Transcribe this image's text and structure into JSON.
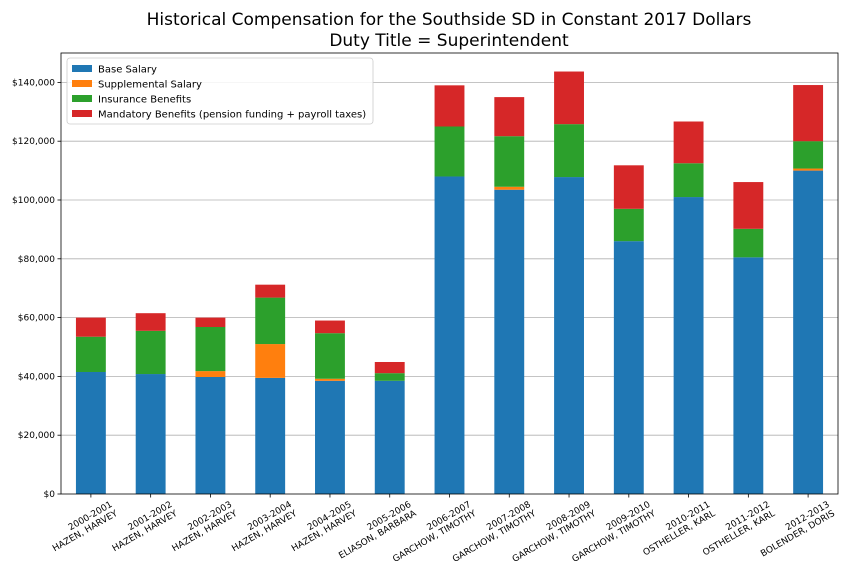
{
  "chart_data": {
    "type": "bar",
    "stacked": true,
    "title": "Historical Compensation for the Southside SD in Constant 2017 Dollars",
    "subtitle": "Duty Title = Superintendent",
    "xlabel": "",
    "ylabel": "",
    "ylim": [
      0,
      150000
    ],
    "y_ticks": [
      0,
      20000,
      40000,
      60000,
      80000,
      100000,
      120000,
      140000
    ],
    "y_tick_labels": [
      "$0",
      "$20,000",
      "$40,000",
      "$60,000",
      "$80,000",
      "$100,000",
      "$120,000",
      "$140,000"
    ],
    "grid": "horizontal",
    "legend_position": "top-left",
    "categories": [
      [
        "2000-2001",
        "HAZEN, HARVEY"
      ],
      [
        "2001-2002",
        "HAZEN, HARVEY"
      ],
      [
        "2002-2003",
        "HAZEN, HARVEY"
      ],
      [
        "2003-2004",
        "HAZEN, HARVEY"
      ],
      [
        "2004-2005",
        "HAZEN, HARVEY"
      ],
      [
        "2005-2006",
        "ELIASON, BARBARA"
      ],
      [
        "2006-2007",
        "GARCHOW, TIMOTHY"
      ],
      [
        "2007-2008",
        "GARCHOW, TIMOTHY"
      ],
      [
        "2008-2009",
        "GARCHOW, TIMOTHY"
      ],
      [
        "2009-2010",
        "GARCHOW, TIMOTHY"
      ],
      [
        "2010-2011",
        "OSTHELLER, KARL"
      ],
      [
        "2011-2012",
        "OSTHELLER, KARL"
      ],
      [
        "2012-2013",
        "BOLENDER, DORIS"
      ]
    ],
    "series": [
      {
        "name": "Base Salary",
        "color": "#1f77b4",
        "values": [
          41500,
          40800,
          39800,
          39500,
          38500,
          38500,
          108000,
          103500,
          107800,
          86000,
          101000,
          80500,
          110000
        ]
      },
      {
        "name": "Supplemental Salary",
        "color": "#ff7f0e",
        "values": [
          0,
          0,
          2000,
          11500,
          700,
          0,
          0,
          1000,
          0,
          0,
          0,
          0,
          700
        ]
      },
      {
        "name": "Insurance Benefits",
        "color": "#2ca02c",
        "values": [
          12000,
          14700,
          15000,
          15800,
          15500,
          2600,
          17000,
          17200,
          18000,
          11000,
          11500,
          9700,
          9300
        ]
      },
      {
        "name": "Mandatory Benefits (pension funding + payroll taxes)",
        "color": "#d62728",
        "values": [
          6500,
          6000,
          3200,
          4400,
          4300,
          3800,
          14000,
          13300,
          17900,
          14800,
          14200,
          15900,
          19100
        ]
      }
    ]
  }
}
